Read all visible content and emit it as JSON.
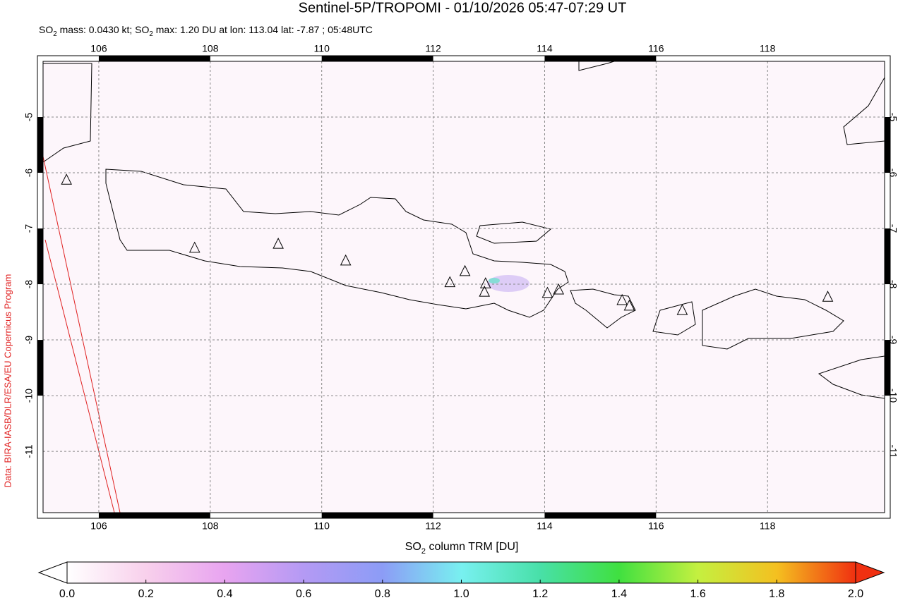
{
  "chart_data": {
    "type": "map",
    "title": "Sentinel-5P/TROPOMI - 01/10/2026 05:47-07:29 UT",
    "subtitle": [
      "SO",
      "2",
      " mass: 0.0430 kt; SO",
      "2",
      " max: 1.20 DU at lon: 113.04 lat: -7.87 ; 05:48UTC"
    ],
    "credit": "Data: BIRA-IASB/DLR/ESA/EU Copernicus Program",
    "xlim": [
      105.0,
      120.1
    ],
    "ylim": [
      -12.1,
      -4.0
    ],
    "xticks": [
      106,
      108,
      110,
      112,
      114,
      116,
      118
    ],
    "yticks": [
      -5,
      -6,
      -7,
      -8,
      -9,
      -10,
      -11
    ],
    "grid": true,
    "markers": {
      "x": [
        105.42,
        107.72,
        109.22,
        110.43,
        112.3,
        112.57,
        112.94,
        112.92,
        114.05,
        114.25,
        115.39,
        115.52,
        116.47,
        119.08
      ],
      "y": [
        -6.13,
        -7.35,
        -7.28,
        -7.58,
        -7.97,
        -7.77,
        -7.99,
        -8.14,
        -8.16,
        -8.1,
        -8.29,
        -8.39,
        -8.47,
        -8.23
      ]
    },
    "colorbar": {
      "label": [
        "SO",
        "2",
        " column TRM [DU]"
      ],
      "lim": [
        0.0,
        2.0
      ],
      "ticks": [
        {
          "value": 0,
          "label": "0.0"
        },
        {
          "value": 0.2,
          "label": "0.2"
        },
        {
          "value": 0.4,
          "label": "0.4"
        },
        {
          "value": 0.6,
          "label": "0.6"
        },
        {
          "value": 0.8,
          "label": "0.8"
        },
        {
          "value": 1,
          "label": "1.0"
        },
        {
          "value": 1.2,
          "label": "1.2"
        },
        {
          "value": 1.4,
          "label": "1.4"
        },
        {
          "value": 1.6,
          "label": "1.6"
        },
        {
          "value": 1.8,
          "label": "1.8"
        },
        {
          "value": 2,
          "label": "2.0"
        }
      ],
      "colors": [
        "#ffffff",
        "#f8d0ec",
        "#e8a4f0",
        "#b49af4",
        "#8c9cf6",
        "#78f0f0",
        "#48e0a8",
        "#40e040",
        "#c4f040",
        "#f4c020",
        "#f03010"
      ]
    }
  }
}
